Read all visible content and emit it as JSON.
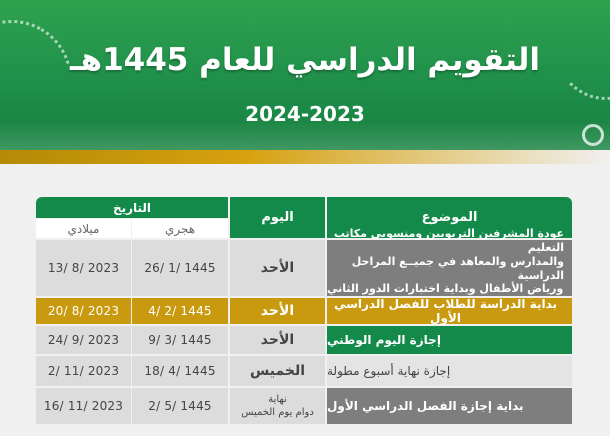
{
  "header": {
    "title": "التقويم الدراسي للعام 1445هـ",
    "subtitle": "2024-2023"
  },
  "table": {
    "columns": {
      "subject": "الموضوع",
      "day": "اليوم",
      "date": "التاريخ",
      "hijri": "هجري",
      "gregorian": "ميلادي"
    },
    "rows": [
      {
        "subject_lines": [
          "عودة المشرفين التربويين ومنسوبي مكاتب التعليم",
          "والمدارس والمعاهد في جميــع المراحل الدراسية",
          "ورياض الأطفال وبداية اختبارات الدور الثاني"
        ],
        "day": "الأحد",
        "hijri": "26/ 1/ 1445",
        "gregorian": "13/ 8/ 2023"
      },
      {
        "subject": "بداية الدراسة للطلاب للفصل الدراسي الأول",
        "day": "الأحد",
        "hijri": "4/ 2/ 1445",
        "gregorian": "20/ 8/ 2023"
      },
      {
        "subject": "إجازة اليوم الوطني",
        "day": "الأحد",
        "hijri": "9/ 3/ 1445",
        "gregorian": "24/ 9/ 2023"
      },
      {
        "subject": "إجازة نهاية أسبوع مطولة",
        "day": "الخميس",
        "hijri": "18/ 4/ 1445",
        "gregorian": "2/ 11/ 2023"
      },
      {
        "subject": "بداية إجازة الفصل الدراسي الأول",
        "day_line1": "نهاية",
        "day_line2": "دوام يوم الخميس",
        "hijri": "2/ 5/ 1445",
        "gregorian": "16/ 11/ 2023"
      }
    ]
  },
  "colors": {
    "green": "#138a4a",
    "gold": "#c99a10",
    "gray": "#7e7e7e",
    "light_gray": "#dcdcdc"
  }
}
